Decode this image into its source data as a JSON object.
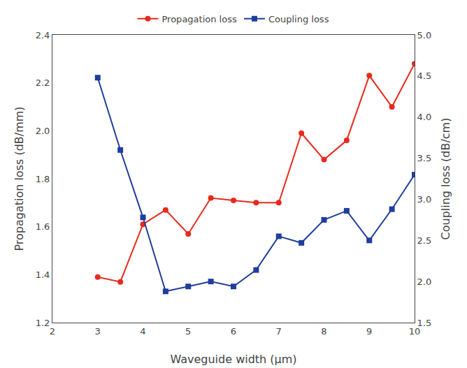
{
  "chart_data": {
    "type": "line",
    "xlabel": "Waveguide width (μm)",
    "ylabel": "Propagation loss (dB/mm)",
    "y2label": "Coupling loss (dB/cm)",
    "x": [
      3,
      3.5,
      4,
      4.5,
      5,
      5.5,
      6,
      6.5,
      7,
      7.5,
      8,
      8.5,
      9,
      9.5,
      10
    ],
    "series": [
      {
        "name": "Propagation loss",
        "color": "#e8291c",
        "marker": "circle",
        "values": [
          1.39,
          1.37,
          1.61,
          1.67,
          1.57,
          1.72,
          1.71,
          1.7,
          1.7,
          1.99,
          1.88,
          1.96,
          2.23,
          2.1,
          2.28
        ]
      },
      {
        "name": "Coupling loss",
        "color": "#1f3d9c",
        "marker": "square",
        "axis": "y2",
        "values": [
          4.48,
          3.6,
          2.78,
          1.88,
          1.94,
          2.0,
          1.94,
          2.14,
          2.55,
          2.47,
          2.75,
          2.86,
          2.5,
          2.88,
          3.3
        ]
      }
    ],
    "xlim": [
      2,
      10
    ],
    "xticks": [
      2,
      3,
      4,
      5,
      6,
      7,
      8,
      9,
      10
    ],
    "ylim": [
      1.2,
      2.4
    ],
    "yticks": [
      1.2,
      1.4,
      1.6,
      1.8,
      {
        "value": 2.0,
        "label": "2.0"
      },
      2.2,
      2.4
    ],
    "y2lim": [
      1.5,
      5.0
    ],
    "y2ticks": [
      1.5,
      {
        "value": 2.0,
        "label": "2.0"
      },
      2.5,
      {
        "value": 3.0,
        "label": "3.0"
      },
      3.5,
      {
        "value": 4.0,
        "label": "4.0"
      },
      4.5,
      {
        "value": 5.0,
        "label": "5.0"
      }
    ],
    "grid": false,
    "legend": "top"
  }
}
